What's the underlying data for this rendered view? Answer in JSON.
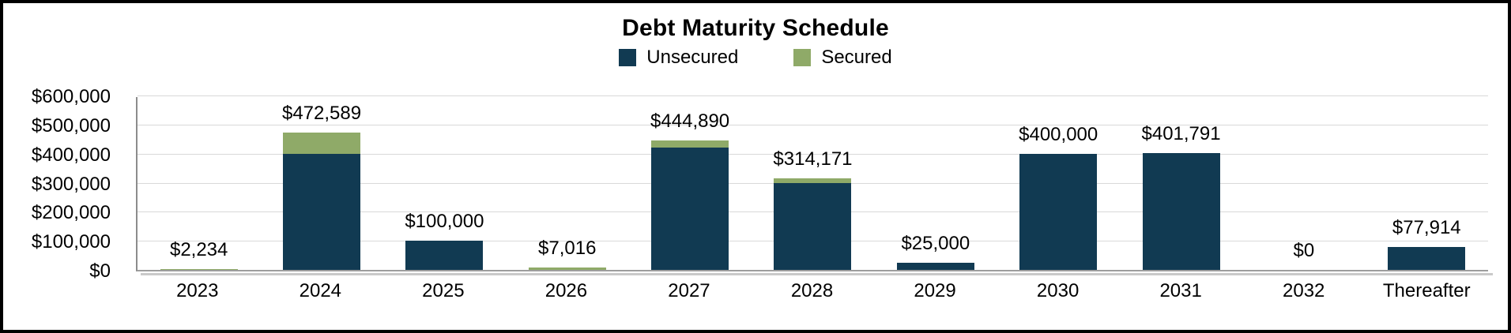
{
  "chart_data": {
    "type": "bar",
    "stacked": true,
    "title": "Debt Maturity Schedule",
    "categories": [
      "2023",
      "2024",
      "2025",
      "2026",
      "2027",
      "2028",
      "2029",
      "2030",
      "2031",
      "2032",
      "Thereafter"
    ],
    "series": [
      {
        "name": "Unsecured",
        "color": "#113a52",
        "values": [
          0,
          400000,
          100000,
          0,
          420000,
          300000,
          25000,
          400000,
          401791,
          0,
          77914
        ]
      },
      {
        "name": "Secured",
        "color": "#8faa68",
        "values": [
          2234,
          72589,
          0,
          7016,
          24890,
          14171,
          0,
          0,
          0,
          0,
          0
        ]
      }
    ],
    "totals": [
      2234,
      472589,
      100000,
      7016,
      444890,
      314171,
      25000,
      400000,
      401791,
      0,
      77914
    ],
    "total_labels": [
      "$2,234",
      "$472,589",
      "$100,000",
      "$7,016",
      "$444,890",
      "$314,171",
      "$25,000",
      "$400,000",
      "$401,791",
      "$0",
      "$77,914"
    ],
    "ylim": [
      0,
      600000
    ],
    "ytick_interval": 100000,
    "yticks": [
      {
        "value": 0,
        "label": "$0"
      },
      {
        "value": 100000,
        "label": "$100,000"
      },
      {
        "value": 200000,
        "label": "$200,000"
      },
      {
        "value": 300000,
        "label": "$300,000"
      },
      {
        "value": 400000,
        "label": "$400,000"
      },
      {
        "value": 500000,
        "label": "$500,000"
      },
      {
        "value": 600000,
        "label": "$600,000"
      }
    ],
    "grid": true,
    "legend_position": "top",
    "colors": {
      "unsecured": "#113a52",
      "secured": "#8faa68",
      "gridline": "#d9d9d9",
      "axis_line": "#9e9e9e",
      "frame_border": "#000000",
      "text": "#000000"
    }
  }
}
